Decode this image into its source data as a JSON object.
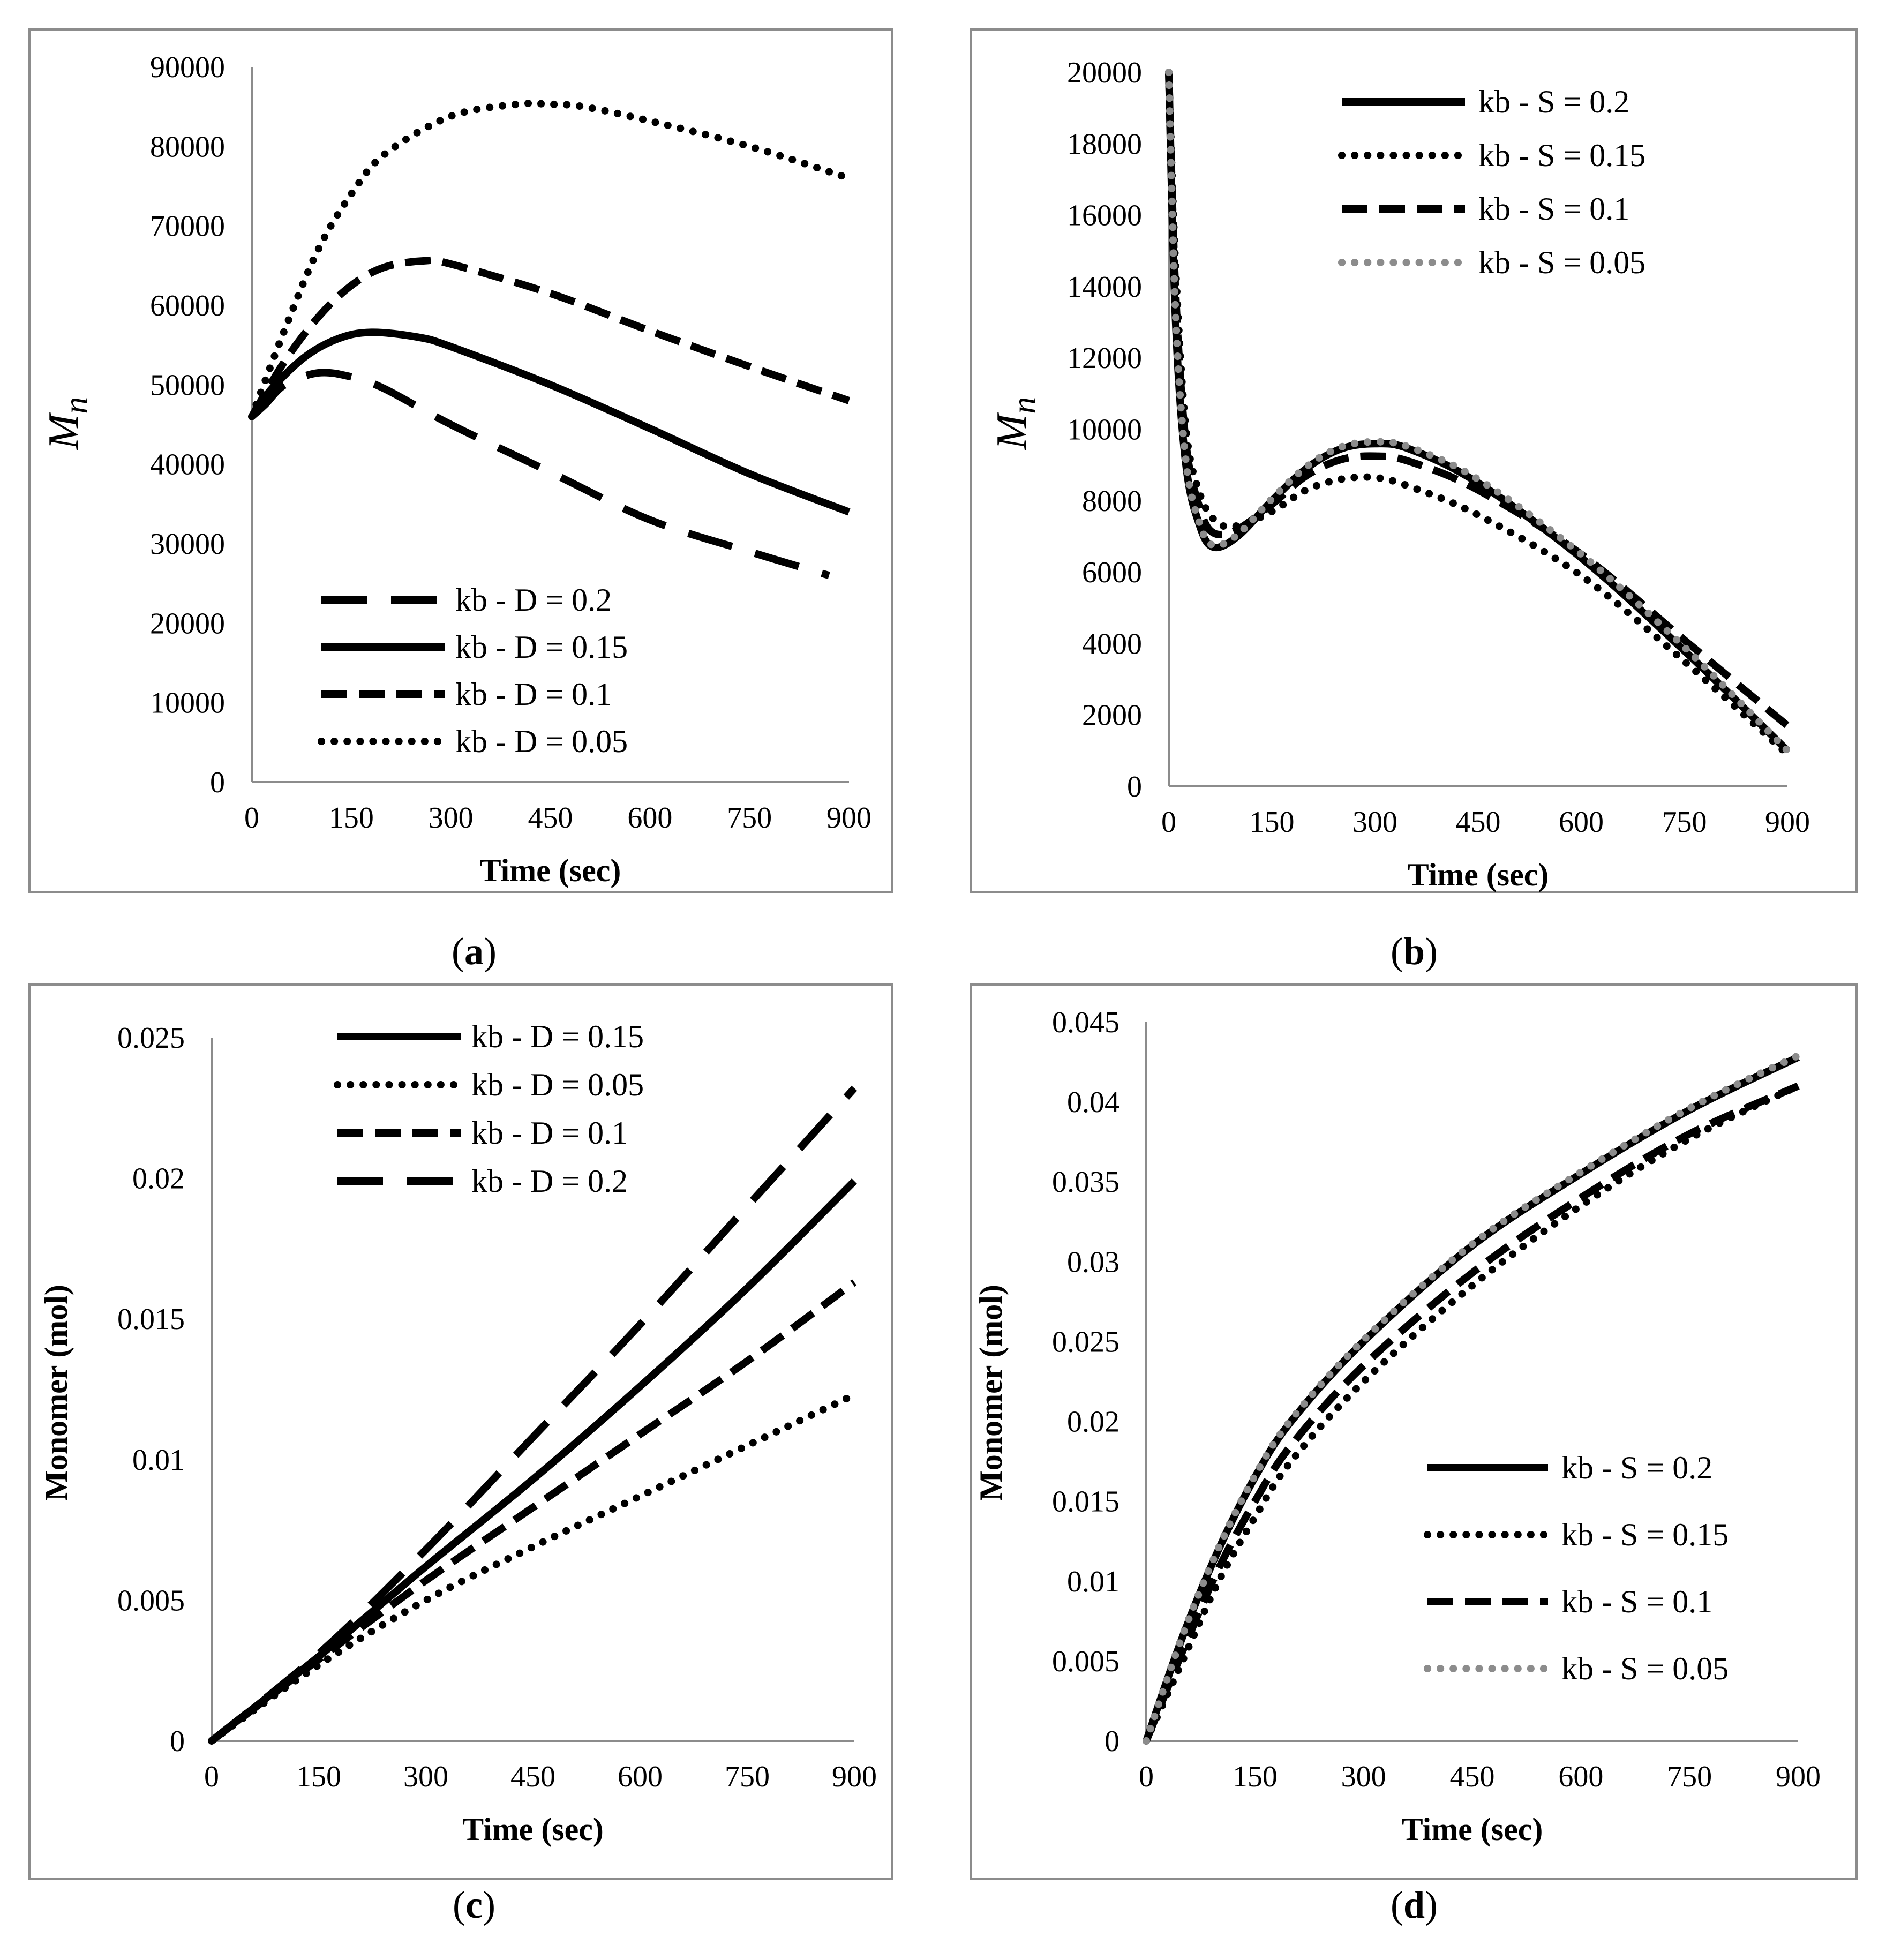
{
  "chart_data": [
    {
      "panel": "a",
      "caption_letter": "a",
      "type": "line",
      "xlabel": "Time (sec)",
      "ylabel": "Mn",
      "ylabel_style": "italic-math",
      "xlim": [
        0,
        900
      ],
      "ylim": [
        0,
        90000
      ],
      "xticks": [
        "0",
        "150",
        "300",
        "450",
        "600",
        "750",
        "900"
      ],
      "yticks": [
        "0",
        "10000",
        "20000",
        "30000",
        "40000",
        "50000",
        "60000",
        "70000",
        "80000",
        "90000"
      ],
      "legend_position": "bottom-left",
      "legend_order": [
        0,
        1,
        2,
        3
      ],
      "series": [
        {
          "name": "kb - D = 0.2",
          "style": "longdash",
          "color": "#000000",
          "x": [
            0,
            20,
            50,
            100,
            150,
            200,
            300,
            450,
            600,
            750,
            870
          ],
          "y": [
            46000,
            47500,
            50000,
            51500,
            51000,
            49500,
            45000,
            39000,
            33000,
            29000,
            26000
          ]
        },
        {
          "name": "kb - D = 0.15",
          "style": "solid",
          "color": "#000000",
          "x": [
            0,
            30,
            80,
            130,
            180,
            250,
            300,
            450,
            600,
            750,
            900
          ],
          "y": [
            46000,
            49500,
            53500,
            55800,
            56600,
            56000,
            54800,
            50000,
            44500,
            38800,
            34000
          ]
        },
        {
          "name": "kb - D = 0.1",
          "style": "dash",
          "color": "#000000",
          "x": [
            0,
            50,
            100,
            150,
            200,
            260,
            300,
            450,
            600,
            750,
            900
          ],
          "y": [
            46000,
            53000,
            58500,
            62500,
            64800,
            65600,
            65200,
            61500,
            56800,
            52300,
            48000
          ]
        },
        {
          "name": "kb - D = 0.05",
          "style": "dot",
          "color": "#000000",
          "x": [
            0,
            50,
            100,
            150,
            200,
            300,
            400,
            450,
            500,
            600,
            750,
            900
          ],
          "y": [
            46000,
            57000,
            67000,
            74000,
            79000,
            83800,
            85300,
            85300,
            85000,
            83200,
            80000,
            76000
          ]
        }
      ]
    },
    {
      "panel": "b",
      "caption_letter": "b",
      "type": "line",
      "xlabel": "Time (sec)",
      "ylabel": "Mn",
      "ylabel_style": "italic-math",
      "xlim": [
        0,
        900
      ],
      "ylim": [
        0,
        20000
      ],
      "xticks": [
        "0",
        "150",
        "300",
        "450",
        "600",
        "750",
        "900"
      ],
      "yticks": [
        "0",
        "2000",
        "4000",
        "6000",
        "8000",
        "10000",
        "12000",
        "14000",
        "16000",
        "18000",
        "20000"
      ],
      "legend_position": "top-center",
      "legend_order": [
        0,
        1,
        2,
        3
      ],
      "series": [
        {
          "name": "kb - S = 0.2",
          "style": "solid",
          "color": "#000000",
          "x": [
            0,
            10,
            25,
            45,
            65,
            100,
            150,
            200,
            250,
            300,
            350,
            450,
            600,
            750,
            900
          ],
          "y": [
            20000,
            13000,
            9000,
            7300,
            6700,
            7000,
            8000,
            8900,
            9450,
            9600,
            9450,
            8500,
            6400,
            3800,
            1000
          ]
        },
        {
          "name": "kb - S = 0.15",
          "style": "dot",
          "color": "#000000",
          "x": [
            0,
            10,
            25,
            45,
            70,
            100,
            150,
            200,
            250,
            300,
            350,
            450,
            600,
            750,
            900
          ],
          "y": [
            20000,
            14500,
            10000,
            8200,
            7400,
            7300,
            7700,
            8300,
            8600,
            8650,
            8400,
            7600,
            5900,
            3500,
            900
          ]
        },
        {
          "name": "kb - S = 0.1",
          "style": "dash",
          "color": "#000000",
          "x": [
            0,
            10,
            25,
            45,
            65,
            100,
            150,
            200,
            250,
            300,
            350,
            450,
            600,
            750,
            900
          ],
          "y": [
            20000,
            13800,
            9600,
            7800,
            7100,
            7200,
            7900,
            8700,
            9150,
            9250,
            9100,
            8300,
            6500,
            4100,
            1700
          ]
        },
        {
          "name": "kb - S = 0.05",
          "style": "dot",
          "color": "#8c8c8c",
          "x": [
            0,
            10,
            25,
            45,
            65,
            100,
            150,
            200,
            250,
            300,
            350,
            450,
            600,
            750,
            900
          ],
          "y": [
            20000,
            13200,
            9100,
            7350,
            6750,
            7050,
            8050,
            8950,
            9500,
            9650,
            9500,
            8600,
            6500,
            3900,
            1000
          ]
        }
      ]
    },
    {
      "panel": "c",
      "caption_letter": "c",
      "type": "line",
      "xlabel": "Time (sec)",
      "ylabel": "Monomer (mol)",
      "ylabel_style": "bold",
      "xlim": [
        0,
        900
      ],
      "ylim": [
        0,
        0.025
      ],
      "xticks": [
        "0",
        "150",
        "300",
        "450",
        "600",
        "750",
        "900"
      ],
      "yticks": [
        "0",
        "0.005",
        "0.01",
        "0.015",
        "0.02",
        "0.025"
      ],
      "legend_position": "top-center",
      "legend_order": [
        1,
        3,
        2,
        0
      ],
      "series": [
        {
          "name": "kb - D = 0.2",
          "style": "longdash",
          "color": "#000000",
          "x": [
            0,
            150,
            300,
            450,
            600,
            750,
            900
          ],
          "y": [
            0,
            0.0031,
            0.0068,
            0.0108,
            0.0148,
            0.019,
            0.0232
          ]
        },
        {
          "name": "kb - D = 0.15",
          "style": "solid",
          "color": "#000000",
          "x": [
            0,
            150,
            300,
            450,
            600,
            750,
            900
          ],
          "y": [
            0,
            0.003,
            0.0062,
            0.0093,
            0.0126,
            0.0161,
            0.0199
          ]
        },
        {
          "name": "kb - D = 0.1",
          "style": "dash",
          "color": "#000000",
          "x": [
            0,
            150,
            300,
            450,
            600,
            750,
            900
          ],
          "y": [
            0,
            0.0029,
            0.0057,
            0.0083,
            0.0109,
            0.0135,
            0.0163
          ]
        },
        {
          "name": "kb - D = 0.05",
          "style": "dot",
          "color": "#000000",
          "x": [
            0,
            150,
            300,
            450,
            600,
            750,
            900
          ],
          "y": [
            0,
            0.0027,
            0.005,
            0.0069,
            0.0087,
            0.0105,
            0.0123
          ]
        }
      ]
    },
    {
      "panel": "d",
      "caption_letter": "d",
      "type": "line",
      "xlabel": "Time (sec)",
      "ylabel": "Monomer (mol)",
      "ylabel_style": "bold",
      "xlim": [
        0,
        900
      ],
      "ylim": [
        0,
        0.045
      ],
      "xticks": [
        "0",
        "150",
        "300",
        "450",
        "600",
        "750",
        "900"
      ],
      "yticks": [
        "0",
        "0.005",
        "0.01",
        "0.015",
        "0.02",
        "0.025",
        "0.03",
        "0.035",
        "0.04",
        "0.045"
      ],
      "legend_position": "bottom-right",
      "legend_order": [
        0,
        1,
        2,
        3
      ],
      "series": [
        {
          "name": "kb - S = 0.2",
          "style": "solid",
          "color": "#000000",
          "x": [
            0,
            50,
            100,
            150,
            200,
            300,
            450,
            600,
            750,
            900
          ],
          "y": [
            0,
            0.0065,
            0.012,
            0.0165,
            0.02,
            0.025,
            0.031,
            0.0355,
            0.0395,
            0.0428
          ]
        },
        {
          "name": "kb - S = 0.15",
          "style": "dot",
          "color": "#000000",
          "x": [
            0,
            50,
            100,
            150,
            200,
            300,
            450,
            600,
            750,
            900
          ],
          "y": [
            0,
            0.005,
            0.01,
            0.014,
            0.0175,
            0.0225,
            0.0285,
            0.0335,
            0.0377,
            0.041
          ]
        },
        {
          "name": "kb - S = 0.1",
          "style": "dash",
          "color": "#000000",
          "x": [
            0,
            50,
            100,
            150,
            200,
            300,
            450,
            600,
            750,
            900
          ],
          "y": [
            0,
            0.0056,
            0.0108,
            0.015,
            0.0185,
            0.0235,
            0.0293,
            0.034,
            0.038,
            0.041
          ]
        },
        {
          "name": "kb - S = 0.05",
          "style": "dot",
          "color": "#8c8c8c",
          "x": [
            0,
            50,
            100,
            150,
            200,
            300,
            450,
            600,
            750,
            900
          ],
          "y": [
            0,
            0.0066,
            0.0121,
            0.0166,
            0.0201,
            0.0251,
            0.0311,
            0.0356,
            0.0396,
            0.0429
          ]
        }
      ]
    }
  ]
}
